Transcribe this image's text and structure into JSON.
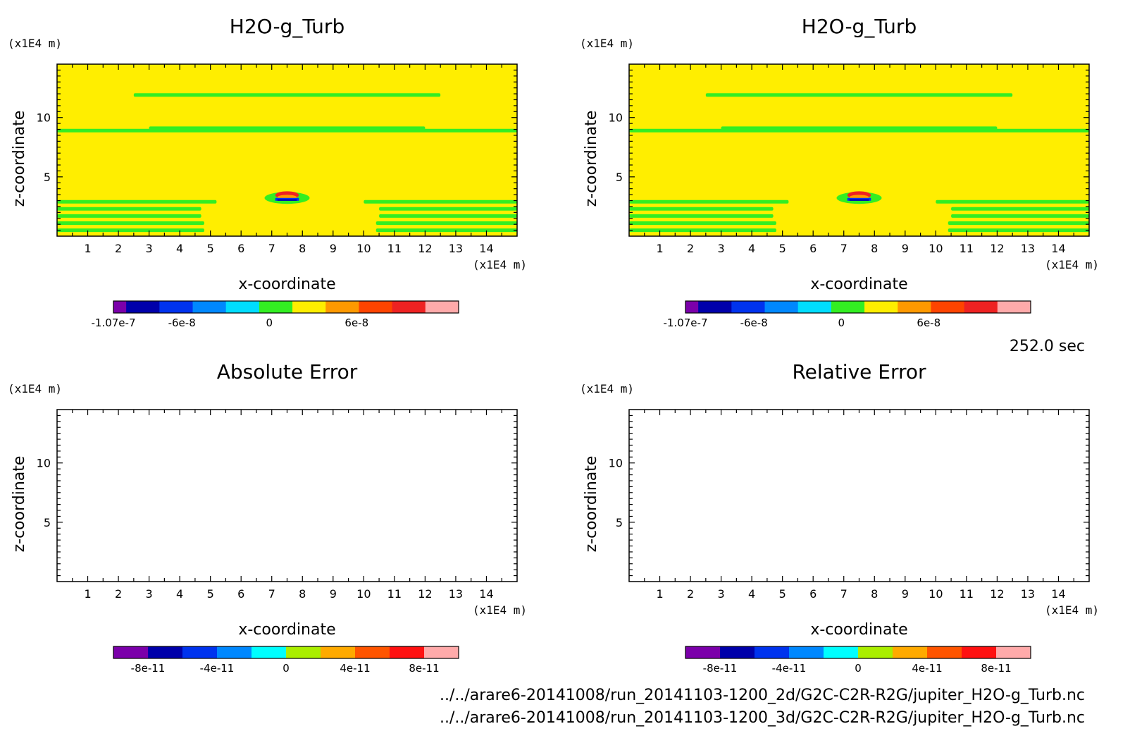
{
  "chart_data": [
    {
      "type": "heatmap",
      "title": "H2O-g_Turb",
      "xlabel": "x-coordinate",
      "ylabel": "z-coordinate",
      "x_unit": "(x1E4 m)",
      "y_unit": "(x1E4 m)",
      "xlim": [
        0,
        15
      ],
      "ylim": [
        0,
        14.5
      ],
      "xticks": [
        1,
        2,
        3,
        4,
        5,
        6,
        7,
        8,
        9,
        10,
        11,
        12,
        13,
        14
      ],
      "yticks": [
        5,
        10
      ],
      "background_level": "yellow",
      "bands": [
        {
          "z": 11.9,
          "x": [
            2.5,
            12.5
          ],
          "color": "#33ee22"
        },
        {
          "z": 8.9,
          "x": [
            0,
            15
          ],
          "color": "#33ee22"
        },
        {
          "z": 9.1,
          "x": [
            3,
            12
          ],
          "color": "#33ee22"
        },
        {
          "z": 2.9,
          "x": [
            0,
            5.2
          ],
          "color": "#33ee22"
        },
        {
          "z": 2.9,
          "x": [
            10,
            15
          ],
          "color": "#33ee22"
        },
        {
          "z": 2.3,
          "x": [
            0,
            4.7
          ],
          "color": "#33ee22"
        },
        {
          "z": 2.3,
          "x": [
            10.5,
            15
          ],
          "color": "#33ee22"
        },
        {
          "z": 1.7,
          "x": [
            0,
            4.7
          ],
          "color": "#33ee22"
        },
        {
          "z": 1.7,
          "x": [
            10.5,
            15
          ],
          "color": "#33ee22"
        },
        {
          "z": 1.1,
          "x": [
            0,
            4.8
          ],
          "color": "#33ee22"
        },
        {
          "z": 1.1,
          "x": [
            10.4,
            15
          ],
          "color": "#33ee22"
        },
        {
          "z": 0.5,
          "x": [
            0,
            4.8
          ],
          "color": "#33ee22"
        },
        {
          "z": 0.5,
          "x": [
            10.4,
            15
          ],
          "color": "#33ee22"
        }
      ],
      "blob": {
        "x": 7.5,
        "z": 3.4,
        "rx": 0.7,
        "rz": 0.5
      },
      "colorbar": {
        "colors": [
          "#7b00aa",
          "#0000aa",
          "#0033ee",
          "#0088ff",
          "#00ddff",
          "#33ee22",
          "#ffee00",
          "#ff9900",
          "#ff4400",
          "#ee2222",
          "#ffaaaa"
        ],
        "widths": [
          1,
          2.6,
          2.6,
          2.6,
          2.6,
          2.6,
          2.6,
          2.6,
          2.6,
          2.6,
          2.6
        ],
        "labels": [
          {
            "text": "-1.07e-7",
            "value": -1.07e-07
          },
          {
            "text": "-6e-8",
            "value": -6e-08
          },
          {
            "text": "0",
            "value": 0
          },
          {
            "text": "6e-8",
            "value": 6e-08
          }
        ],
        "range": [
          -1.07e-07,
          1.3e-07
        ]
      }
    },
    {
      "type": "heatmap",
      "title": "H2O-g_Turb",
      "xlabel": "x-coordinate",
      "ylabel": "z-coordinate",
      "x_unit": "(x1E4 m)",
      "y_unit": "(x1E4 m)",
      "xlim": [
        0,
        15
      ],
      "ylim": [
        0,
        14.5
      ],
      "xticks": [
        1,
        2,
        3,
        4,
        5,
        6,
        7,
        8,
        9,
        10,
        11,
        12,
        13,
        14
      ],
      "yticks": [
        5,
        10
      ],
      "background_level": "yellow",
      "bands": "same as panel 1",
      "colorbar": "same as panel 1"
    },
    {
      "type": "heatmap",
      "title": "Absolute Error",
      "xlabel": "x-coordinate",
      "ylabel": "z-coordinate",
      "x_unit": "(x1E4 m)",
      "y_unit": "(x1E4 m)",
      "xlim": [
        0,
        15
      ],
      "ylim": [
        0,
        14.5
      ],
      "xticks": [
        1,
        2,
        3,
        4,
        5,
        6,
        7,
        8,
        9,
        10,
        11,
        12,
        13,
        14
      ],
      "yticks": [
        5,
        10
      ],
      "empty": true,
      "colorbar": {
        "colors": [
          "#7b00aa",
          "#0000aa",
          "#0033ee",
          "#0088ff",
          "#00ffff",
          "#aaee00",
          "#ffaa00",
          "#ff5500",
          "#ff1111",
          "#ffaaaa"
        ],
        "labels": [
          {
            "text": "-8e-11",
            "value": -8e-11
          },
          {
            "text": "-4e-11",
            "value": -4e-11
          },
          {
            "text": "0",
            "value": 0
          },
          {
            "text": "4e-11",
            "value": 4e-11
          },
          {
            "text": "8e-11",
            "value": 8e-11
          }
        ],
        "range": [
          -1e-10,
          1e-10
        ]
      }
    },
    {
      "type": "heatmap",
      "title": "Relative Error",
      "xlabel": "x-coordinate",
      "ylabel": "z-coordinate",
      "x_unit": "(x1E4 m)",
      "y_unit": "(x1E4 m)",
      "xlim": [
        0,
        15
      ],
      "ylim": [
        0,
        14.5
      ],
      "xticks": [
        1,
        2,
        3,
        4,
        5,
        6,
        7,
        8,
        9,
        10,
        11,
        12,
        13,
        14
      ],
      "yticks": [
        5,
        10
      ],
      "empty": true,
      "colorbar": "same as panel 3"
    }
  ],
  "time_label": "252.0 sec",
  "files": [
    "../../arare6-20141008/run_20141103-1200_2d/G2C-C2R-R2G/jupiter_H2O-g_Turb.nc",
    "../../arare6-20141008/run_20141103-1200_3d/G2C-C2R-R2G/jupiter_H2O-g_Turb.nc"
  ],
  "colors": {
    "field_background": "#ffee00",
    "band": "#33ee22",
    "frame": "#000000"
  }
}
